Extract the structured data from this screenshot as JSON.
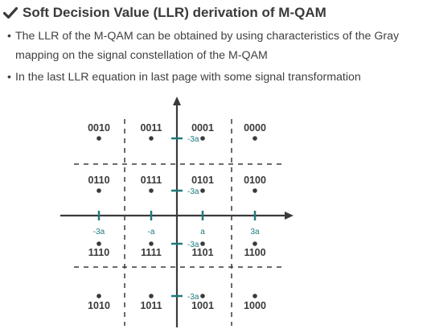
{
  "title": "Soft Decision Value (LLR) derivation of M-QAM",
  "bullets": [
    {
      "line1": "The LLR of the M-QAM can be obtained by using characteristics of the Gray",
      "line2": "mapping  on the signal constellation of the M-QAM"
    },
    {
      "line1": "In the last LLR equation in last page with some signal transformation"
    }
  ],
  "bullet_glyph": "•",
  "icons": {
    "title_icon": "check-mark-icon"
  },
  "colors": {
    "text": "#3a3a3a",
    "axis": "#3a3a3a",
    "teal": "#1f7a7a",
    "dashed": "#3a3a3a"
  },
  "constellation": {
    "symbols": [
      {
        "bits": "0010",
        "col": 0,
        "row": 0
      },
      {
        "bits": "0011",
        "col": 1,
        "row": 0
      },
      {
        "bits": "0001",
        "col": 2,
        "row": 0
      },
      {
        "bits": "0000",
        "col": 3,
        "row": 0
      },
      {
        "bits": "0110",
        "col": 0,
        "row": 1
      },
      {
        "bits": "0111",
        "col": 1,
        "row": 1
      },
      {
        "bits": "0101",
        "col": 2,
        "row": 1
      },
      {
        "bits": "0100",
        "col": 3,
        "row": 1
      },
      {
        "bits": "1110",
        "col": 0,
        "row": 2
      },
      {
        "bits": "1111",
        "col": 1,
        "row": 2
      },
      {
        "bits": "1101",
        "col": 2,
        "row": 2
      },
      {
        "bits": "1100",
        "col": 3,
        "row": 2
      },
      {
        "bits": "1010",
        "col": 0,
        "row": 3
      },
      {
        "bits": "1011",
        "col": 1,
        "row": 3
      },
      {
        "bits": "1001",
        "col": 2,
        "row": 3
      },
      {
        "bits": "1000",
        "col": 3,
        "row": 3
      }
    ],
    "x_ticks": [
      "-3a",
      "-a",
      "a",
      "3a"
    ],
    "y_ticks": [
      "-3a",
      "-3a",
      "-3a",
      "-3a"
    ]
  }
}
